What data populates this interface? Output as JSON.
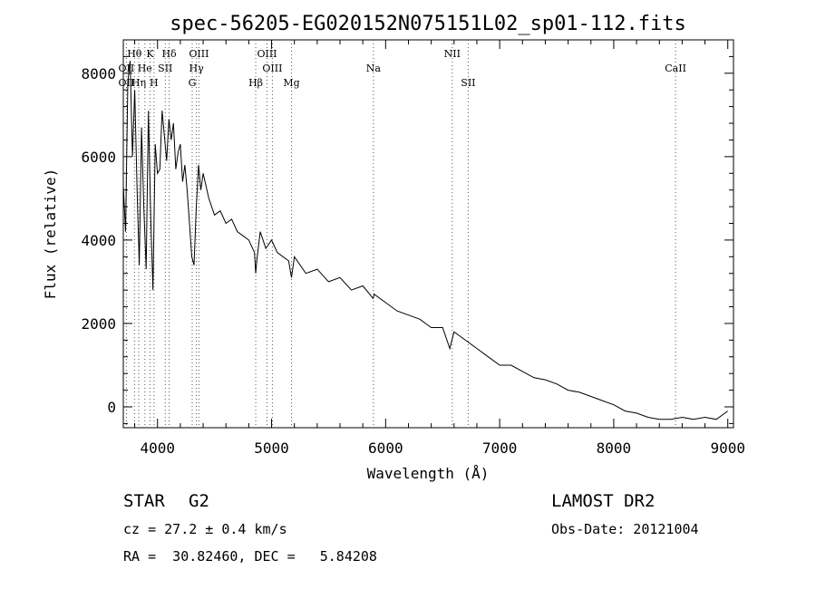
{
  "chart_data": {
    "type": "line",
    "title": "spec-56205-EG020152N075151L02_sp01-112.fits",
    "xlabel": "Wavelength (Å)",
    "ylabel": "Flux (relative)",
    "xlim": [
      3700,
      9050
    ],
    "ylim": [
      -500,
      8800
    ],
    "x_ticks": [
      4000,
      5000,
      6000,
      7000,
      8000,
      9000
    ],
    "y_ticks": [
      0,
      2000,
      4000,
      6000,
      8000
    ],
    "grid": false,
    "series": [
      {
        "x": [
          3700,
          3720,
          3740,
          3760,
          3780,
          3800,
          3820,
          3840,
          3860,
          3880,
          3900,
          3920,
          3940,
          3960,
          3980,
          4000,
          4020,
          4040,
          4060,
          4080,
          4100,
          4120,
          4140,
          4160,
          4180,
          4200,
          4220,
          4240,
          4260,
          4280,
          4300,
          4320,
          4340,
          4360,
          4380,
          4400,
          4450,
          4500,
          4550,
          4600,
          4650,
          4700,
          4750,
          4800,
          4850,
          4861,
          4870,
          4900,
          4950,
          5000,
          5050,
          5100,
          5150,
          5175,
          5200,
          5300,
          5400,
          5500,
          5600,
          5700,
          5800,
          5890,
          5900,
          6000,
          6100,
          6200,
          6300,
          6400,
          6500,
          6563,
          6600,
          6700,
          6800,
          6900,
          7000,
          7100,
          7200,
          7300,
          7400,
          7500,
          7600,
          7700,
          7800,
          7900,
          8000,
          8100,
          8200,
          8300,
          8400,
          8500,
          8600,
          8700,
          8800,
          8900,
          9000
        ],
        "y": [
          5300,
          4200,
          7800,
          8300,
          6000,
          7600,
          5300,
          3400,
          6700,
          4800,
          3300,
          7100,
          4600,
          2800,
          6300,
          5600,
          5700,
          7100,
          6500,
          5900,
          6900,
          6400,
          6800,
          5700,
          6100,
          6300,
          5400,
          5800,
          5200,
          4400,
          3600,
          3400,
          4800,
          5800,
          5200,
          5600,
          5000,
          4600,
          4700,
          4400,
          4500,
          4200,
          4100,
          4000,
          3700,
          3200,
          3500,
          4200,
          3800,
          4000,
          3700,
          3600,
          3500,
          3100,
          3600,
          3200,
          3300,
          3000,
          3100,
          2800,
          2900,
          2600,
          2700,
          2500,
          2300,
          2200,
          2100,
          1900,
          1900,
          1400,
          1800,
          1600,
          1400,
          1200,
          1000,
          1000,
          850,
          700,
          650,
          550,
          400,
          350,
          250,
          150,
          50,
          -100,
          -150,
          -250,
          -300,
          -300,
          -250,
          -300,
          -250,
          -300,
          -100
        ]
      }
    ],
    "line_markers": [
      {
        "label": "Hθ",
        "x": 3798,
        "row": 0
      },
      {
        "label": "K",
        "x": 3934,
        "row": 0
      },
      {
        "label": "Hδ",
        "x": 4102,
        "row": 0
      },
      {
        "label": "OIII",
        "x": 4363,
        "row": 0
      },
      {
        "label": "OIII",
        "x": 4960,
        "row": 0
      },
      {
        "label": "NII",
        "x": 6584,
        "row": 0
      },
      {
        "label": "OII",
        "x": 3727,
        "row": 1
      },
      {
        "label": "He",
        "x": 3889,
        "row": 1
      },
      {
        "label": "SII",
        "x": 4068,
        "row": 1
      },
      {
        "label": "Hγ",
        "x": 4341,
        "row": 1
      },
      {
        "label": "OIII",
        "x": 5007,
        "row": 1
      },
      {
        "label": "Na",
        "x": 5893,
        "row": 1
      },
      {
        "label": "CaII",
        "x": 8542,
        "row": 1
      },
      {
        "label": "OII",
        "x": 3727,
        "row": 2
      },
      {
        "label": "Hη",
        "x": 3835,
        "row": 2
      },
      {
        "label": "H",
        "x": 3969,
        "row": 2
      },
      {
        "label": "G",
        "x": 4304,
        "row": 2
      },
      {
        "label": "Hβ",
        "x": 4861,
        "row": 2
      },
      {
        "label": "Mg",
        "x": 5175,
        "row": 2
      },
      {
        "label": "SII",
        "x": 6724,
        "row": 2
      }
    ]
  },
  "info": {
    "class_label": "STAR",
    "subclass": "G2",
    "survey": "LAMOST DR2",
    "redshift_line": "cz = 27.2 ± 0.4 km/s",
    "obs_date": "Obs-Date: 20121004",
    "coords": "RA =  30.82460, DEC =   5.84208"
  }
}
